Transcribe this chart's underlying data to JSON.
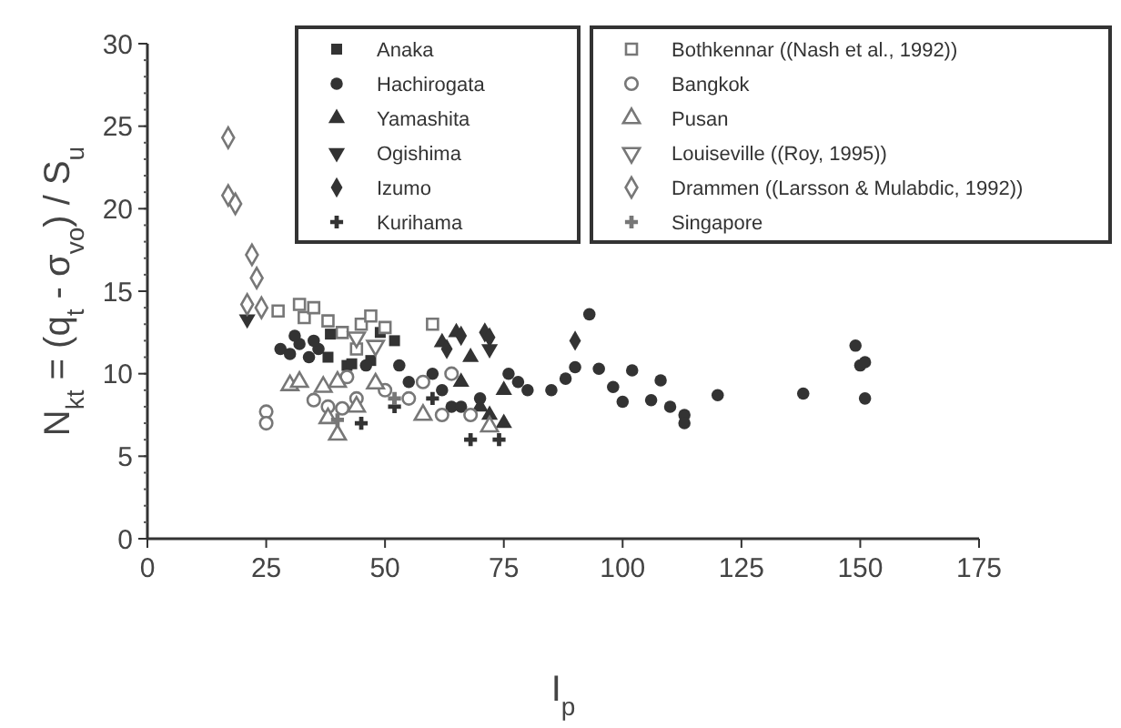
{
  "chart_data": {
    "type": "scatter",
    "xlabel": "I$_{p}$",
    "ylabel": "N$_{kt}$ = (q$_{t}$ - σ$_{vo}$) / S$_{u}$",
    "xlim": [
      0,
      175
    ],
    "xticks": [
      0,
      25,
      50,
      75,
      100,
      125,
      150,
      175
    ],
    "ylim": [
      0,
      30
    ],
    "yticks": [
      0,
      5,
      10,
      15,
      20,
      25,
      30
    ],
    "grid": false,
    "legend": "top right",
    "series": [
      {
        "name": "Anaka",
        "color": "#333333",
        "marker": "square",
        "x": [
          38,
          42,
          43,
          47,
          49,
          52,
          38.5
        ],
        "values": [
          11,
          10.5,
          10.6,
          10.8,
          12.5,
          12,
          12.4
        ]
      },
      {
        "name": "Hachirogata",
        "color": "#333333",
        "marker": "circle",
        "x": [
          28,
          30,
          32,
          34,
          36,
          31,
          35,
          46,
          53,
          55,
          60,
          62,
          64,
          66,
          70,
          76,
          78,
          80,
          85,
          88,
          90,
          95,
          98,
          100,
          102,
          106,
          108,
          110,
          113,
          113,
          120,
          138,
          149,
          150,
          151,
          151,
          93
        ],
        "values": [
          11.5,
          11.2,
          11.8,
          11,
          11.5,
          12.3,
          12,
          10.5,
          10.5,
          9.5,
          10,
          9,
          8,
          8,
          8.5,
          10,
          9.5,
          9,
          9,
          9.7,
          10.4,
          10.3,
          9.2,
          8.3,
          10.2,
          8.4,
          9.6,
          8,
          7.5,
          7,
          8.7,
          8.8,
          11.7,
          10.5,
          10.7,
          8.5,
          13.6
        ]
      },
      {
        "name": "Yamashita",
        "color": "#333333",
        "marker": "triangle",
        "x": [
          62,
          65,
          66,
          70,
          72,
          75,
          68,
          75
        ],
        "values": [
          11.9,
          12.5,
          9.5,
          8,
          7.5,
          9,
          11,
          7
        ]
      },
      {
        "name": "Ogishima",
        "color": "#333333",
        "marker": "triangle-down",
        "x": [
          21,
          72
        ],
        "values": [
          13.3,
          11.5
        ]
      },
      {
        "name": "Izumo",
        "color": "#333333",
        "marker": "diamond",
        "x": [
          71,
          72,
          90,
          63,
          66
        ],
        "values": [
          12.5,
          12.2,
          12,
          11.5,
          12.3
        ]
      },
      {
        "name": "Kurihama",
        "color": "#333333",
        "marker": "cross",
        "x": [
          45,
          68,
          74,
          60,
          52
        ],
        "values": [
          7,
          6,
          6,
          8.5,
          8
        ]
      },
      {
        "name": "Bothkennar  ((Nash et al., 1992))",
        "color": "#777777",
        "marker": "square-open",
        "x": [
          27.5,
          32,
          33,
          35,
          38,
          41,
          45,
          44,
          47,
          60,
          50
        ],
        "values": [
          13.8,
          14.2,
          13.4,
          14,
          13.2,
          12.5,
          13,
          11.5,
          13.5,
          13,
          12.8
        ]
      },
      {
        "name": "Bangkok",
        "color": "#777777",
        "marker": "circle-open",
        "x": [
          25,
          25,
          35,
          38,
          41,
          44,
          50,
          55,
          58,
          62,
          64,
          68,
          42
        ],
        "values": [
          7.7,
          7,
          8.4,
          8,
          7.9,
          8.5,
          9,
          8.5,
          9.5,
          7.5,
          10,
          7.5,
          9.8
        ]
      },
      {
        "name": "Pusan",
        "color": "#777777",
        "marker": "triangle-open",
        "x": [
          30,
          32,
          37,
          40,
          38,
          40,
          44,
          48,
          58,
          72
        ],
        "values": [
          9.3,
          9.5,
          9.2,
          9.5,
          7.3,
          6.3,
          8,
          9.4,
          7.5,
          6.8
        ]
      },
      {
        "name": "Louiseville  ((Roy, 1995))",
        "color": "#777777",
        "marker": "triangle-down-open",
        "x": [
          44,
          48
        ],
        "values": [
          12.2,
          11.7
        ]
      },
      {
        "name": "Drammen  ((Larsson & Mulabdic, 1992))",
        "color": "#777777",
        "marker": "diamond-open",
        "x": [
          17,
          17,
          18.5,
          22,
          23,
          21,
          24
        ],
        "values": [
          24.3,
          20.8,
          20.3,
          17.2,
          15.8,
          14.2,
          14
        ]
      },
      {
        "name": "Singapore",
        "color": "#777777",
        "marker": "cross",
        "x": [
          40,
          52
        ],
        "values": [
          7.2,
          8.5
        ]
      }
    ]
  }
}
